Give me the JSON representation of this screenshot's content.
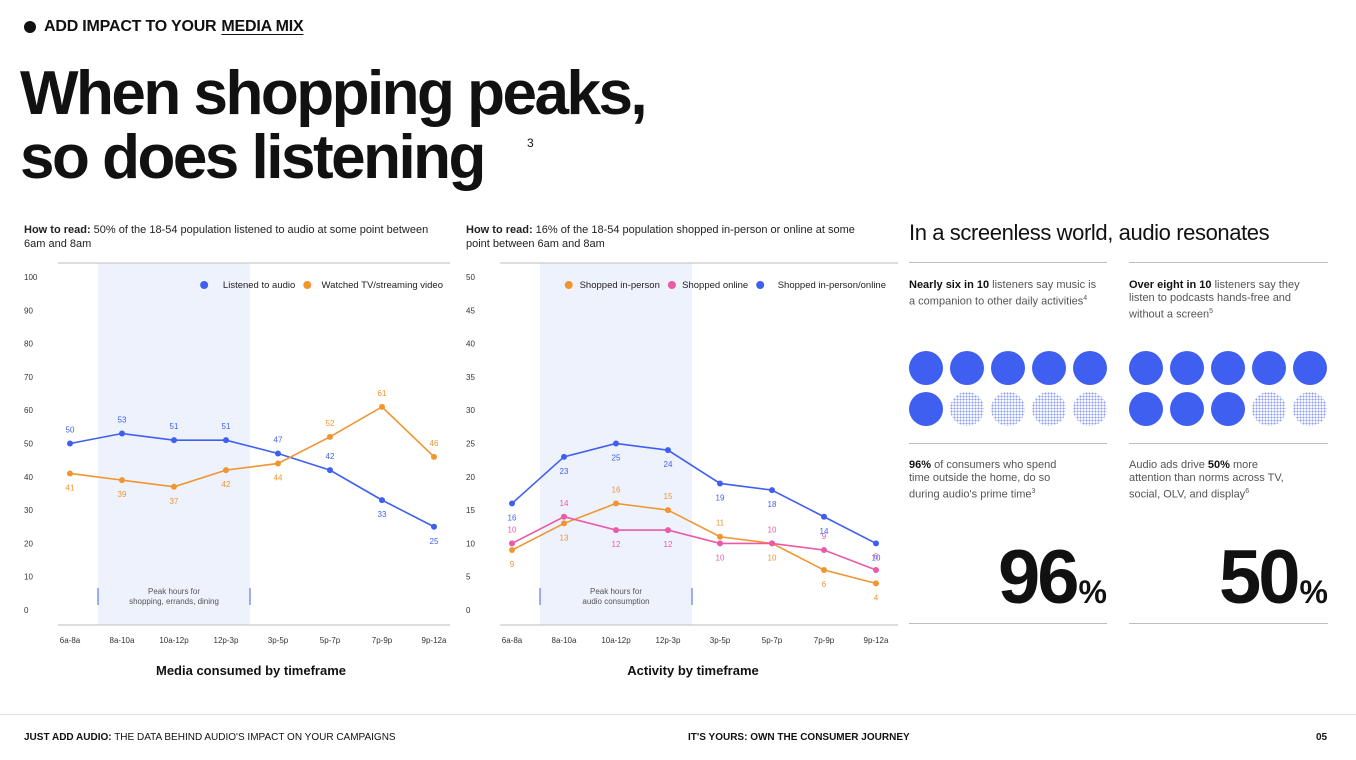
{
  "header": {
    "kicker_prefix": "ADD IMPACT TO YOUR",
    "kicker_link": "MEDIA MIX",
    "title_line1": "When shopping peaks,",
    "title_line2": "so does listening",
    "footnote": "3"
  },
  "left_panel": {
    "howto_label": "How to read:",
    "howto_text": " 50% of the 18-54 population listened to audio at some point between 6am and 8am",
    "caption": "Media consumed by timeframe",
    "peak_label_1": "Peak hours for",
    "peak_label_2": "shopping, errands, dining"
  },
  "right_panel": {
    "howto_label": "How to read:",
    "howto_text": " 16% of the 18-54 population shopped in-person or online at some point between 6am and 8am",
    "caption": "Activity by timeframe",
    "peak_label_1": "Peak hours for",
    "peak_label_2": "audio consumption"
  },
  "chart_data": [
    {
      "type": "line",
      "categories": [
        "6a-8a",
        "8a-10a",
        "10a-12p",
        "12p-3p",
        "3p-5p",
        "5p-7p",
        "7p-9p",
        "9p-12a"
      ],
      "ylim": [
        0,
        100
      ],
      "yticks": [
        0,
        10,
        20,
        30,
        40,
        50,
        60,
        70,
        80,
        90,
        100
      ],
      "highlight": [
        "8a-10a",
        "12p-3p"
      ],
      "legend_position": "top-right",
      "xlabel": "Media consumed by timeframe",
      "series": [
        {
          "name": "Listened to audio",
          "color": "#3f5ff1",
          "values": [
            50,
            53,
            51,
            51,
            47,
            42,
            33,
            25
          ]
        },
        {
          "name": "Watched TV/streaming video",
          "color": "#f0952f",
          "values": [
            41,
            39,
            37,
            42,
            44,
            52,
            61,
            46
          ]
        }
      ]
    },
    {
      "type": "line",
      "categories": [
        "6a-8a",
        "8a-10a",
        "10a-12p",
        "12p-3p",
        "3p-5p",
        "5p-7p",
        "7p-9p",
        "9p-12a"
      ],
      "ylim": [
        0,
        50
      ],
      "yticks": [
        0,
        5,
        10,
        15,
        20,
        25,
        30,
        35,
        40,
        45,
        50
      ],
      "highlight": [
        "8a-10a",
        "12p-3p"
      ],
      "legend_position": "top-right",
      "xlabel": "Activity by timeframe",
      "series": [
        {
          "name": "Shopped in-person",
          "color": "#f0952f",
          "values": [
            9,
            13,
            16,
            15,
            11,
            10,
            6,
            4
          ]
        },
        {
          "name": "Shopped online",
          "color": "#ea5aa6",
          "values": [
            10,
            14,
            12,
            12,
            10,
            10,
            9,
            6
          ]
        },
        {
          "name": "Shopped in-person/online",
          "color": "#3f5ff1",
          "values": [
            16,
            23,
            25,
            24,
            19,
            18,
            14,
            10
          ]
        }
      ]
    }
  ],
  "side": {
    "title": "In a screenless world, audio resonates",
    "stat1": {
      "bold": "Nearly six in 10",
      "text": " listeners say music is a companion to other daily activities",
      "sup": "4",
      "filled": 6,
      "total": 10
    },
    "stat2": {
      "bold": "Over eight in 10",
      "text": " listeners say they listen to podcasts hands-free and without a screen",
      "sup": "5",
      "filled": 8,
      "total": 10
    },
    "stat3": {
      "bold": "96%",
      "text": " of consumers who spend time outside the home, do so during audio's prime time",
      "sup": "3",
      "big": "96",
      "unit": "%"
    },
    "stat4": {
      "pre": "Audio ads drive ",
      "bold": "50%",
      "text": " more attention than norms across TV, social, OLV, and display",
      "sup": "6",
      "big": "50",
      "unit": "%"
    }
  },
  "footer": {
    "left_bold": "JUST ADD AUDIO:",
    "left_text": " THE DATA BEHIND AUDIO'S IMPACT ON YOUR CAMPAIGNS",
    "center": "IT'S YOURS: OWN THE CONSUMER JOURNEY",
    "page": "05"
  }
}
